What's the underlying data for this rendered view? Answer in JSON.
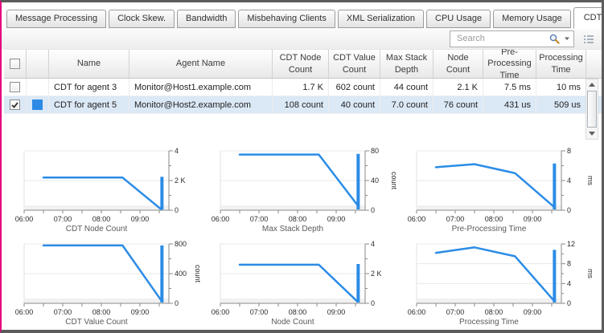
{
  "tabs": [
    {
      "label": "Message Processing",
      "active": false
    },
    {
      "label": "Clock Skew.",
      "active": false
    },
    {
      "label": "Bandwidth",
      "active": false
    },
    {
      "label": "Misbehaving Clients",
      "active": false
    },
    {
      "label": "XML Serialization",
      "active": false
    },
    {
      "label": "CPU Usage",
      "active": false
    },
    {
      "label": "Memory Usage",
      "active": false
    },
    {
      "label": "CDT Submission",
      "active": true
    }
  ],
  "toolbar": {
    "search_placeholder": "Search",
    "icons": [
      "search-icon",
      "search-options-caret-icon",
      "column-chooser-icon"
    ]
  },
  "table": {
    "columns": [
      "Name",
      "Agent Name",
      "CDT Node Count",
      "CDT Value Count",
      "Max Stack Depth",
      "Node Count",
      "Pre-Processing Time",
      "Processing Time"
    ],
    "rows": [
      {
        "checked": false,
        "selected": false,
        "swatch": null,
        "cells": {
          "name": "CDT for agent 3",
          "agent_name": "Monitor@Host1.example.com",
          "cdt_node_count": "1.7 K",
          "cdt_value_count": "602 count",
          "max_stack_depth": "44 count",
          "node_count": "2.1 K",
          "pre_processing_time": "7.5 ms",
          "processing_time": "10 ms"
        }
      },
      {
        "checked": true,
        "selected": true,
        "swatch": "#2d8ae5",
        "cells": {
          "name": "CDT for agent 5",
          "agent_name": "Monitor@Host2.example.com",
          "cdt_node_count": "108 count",
          "cdt_value_count": "40 count",
          "max_stack_depth": "7.0 count",
          "node_count": "76 count",
          "pre_processing_time": "431 us",
          "processing_time": "509 us"
        }
      }
    ]
  },
  "colors": {
    "chart_line": "#2b8ce6",
    "series_swatch": "#2d8ae5",
    "selected_row_bg": "#dbe8f6",
    "frame_accent": "#e6007e"
  },
  "chart_data": [
    {
      "type": "line",
      "title": "CDT Node Count",
      "ylabel": "",
      "xlim": [
        6,
        9.75
      ],
      "ylim": [
        0,
        4000
      ],
      "x_ticks": [
        {
          "v": 6,
          "label": "06:00"
        },
        {
          "v": 7,
          "label": "07:00"
        },
        {
          "v": 8,
          "label": "08:00"
        },
        {
          "v": 9,
          "label": "09:00"
        }
      ],
      "x_minor": [
        6.5,
        7.5,
        8.5,
        9.5
      ],
      "y_ticks": [
        {
          "v": 0,
          "label": "0"
        },
        {
          "v": 1000,
          "label": ""
        },
        {
          "v": 2000,
          "label": "2 K"
        },
        {
          "v": 3000,
          "label": ""
        },
        {
          "v": 4000,
          "label": "4"
        }
      ],
      "points": [
        [
          6.5,
          2200
        ],
        [
          8.55,
          2200
        ],
        [
          9.55,
          60
        ]
      ],
      "spike": [
        9.57,
        2250
      ]
    },
    {
      "type": "line",
      "title": "Max Stack Depth",
      "ylabel": "count",
      "xlim": [
        6,
        9.75
      ],
      "ylim": [
        0,
        80
      ],
      "x_ticks": [
        {
          "v": 6,
          "label": "06:00"
        },
        {
          "v": 7,
          "label": "07:00"
        },
        {
          "v": 8,
          "label": "08:00"
        },
        {
          "v": 9,
          "label": "09:00"
        }
      ],
      "x_minor": [
        6.5,
        7.5,
        8.5,
        9.5
      ],
      "y_ticks": [
        {
          "v": 0,
          "label": "0"
        },
        {
          "v": 20,
          "label": ""
        },
        {
          "v": 40,
          "label": "40"
        },
        {
          "v": 60,
          "label": ""
        },
        {
          "v": 80,
          "label": "80"
        }
      ],
      "points": [
        [
          6.5,
          75
        ],
        [
          8.55,
          75
        ],
        [
          9.55,
          7
        ]
      ],
      "spike": [
        9.57,
        76
      ]
    },
    {
      "type": "line",
      "title": "Pre-Processing Time",
      "ylabel": "ms",
      "xlim": [
        6,
        9.75
      ],
      "ylim": [
        0,
        8
      ],
      "x_ticks": [
        {
          "v": 6,
          "label": "06:00"
        },
        {
          "v": 7,
          "label": "07:00"
        },
        {
          "v": 8,
          "label": "08:00"
        },
        {
          "v": 9,
          "label": "09:00"
        }
      ],
      "x_minor": [
        6.5,
        7.5,
        8.5,
        9.5
      ],
      "y_ticks": [
        {
          "v": 0,
          "label": "0"
        },
        {
          "v": 2,
          "label": ""
        },
        {
          "v": 4,
          "label": "4"
        },
        {
          "v": 6,
          "label": ""
        },
        {
          "v": 8,
          "label": "8"
        }
      ],
      "points": [
        [
          6.5,
          5.8
        ],
        [
          7.5,
          6.2
        ],
        [
          8.55,
          5.0
        ],
        [
          9.55,
          0.5
        ]
      ],
      "spike": [
        9.57,
        6.3
      ]
    },
    {
      "type": "line",
      "title": "CDT Value Count",
      "ylabel": "count",
      "xlim": [
        6,
        9.75
      ],
      "ylim": [
        0,
        800
      ],
      "x_ticks": [
        {
          "v": 6,
          "label": "06:00"
        },
        {
          "v": 7,
          "label": "07:00"
        },
        {
          "v": 8,
          "label": "08:00"
        },
        {
          "v": 9,
          "label": "09:00"
        }
      ],
      "x_minor": [
        6.5,
        7.5,
        8.5,
        9.5
      ],
      "y_ticks": [
        {
          "v": 0,
          "label": "0"
        },
        {
          "v": 200,
          "label": ""
        },
        {
          "v": 400,
          "label": "400"
        },
        {
          "v": 600,
          "label": ""
        },
        {
          "v": 800,
          "label": "800"
        }
      ],
      "points": [
        [
          6.5,
          780
        ],
        [
          8.55,
          780
        ],
        [
          9.55,
          40
        ]
      ],
      "spike": [
        9.57,
        780
      ]
    },
    {
      "type": "line",
      "title": "Node Count",
      "ylabel": "",
      "xlim": [
        6,
        9.75
      ],
      "ylim": [
        0,
        4000
      ],
      "x_ticks": [
        {
          "v": 6,
          "label": "06:00"
        },
        {
          "v": 7,
          "label": "07:00"
        },
        {
          "v": 8,
          "label": "08:00"
        },
        {
          "v": 9,
          "label": "09:00"
        }
      ],
      "x_minor": [
        6.5,
        7.5,
        8.5,
        9.5
      ],
      "y_ticks": [
        {
          "v": 0,
          "label": "0"
        },
        {
          "v": 1000,
          "label": ""
        },
        {
          "v": 2000,
          "label": "2 K"
        },
        {
          "v": 3000,
          "label": ""
        },
        {
          "v": 4000,
          "label": "4"
        }
      ],
      "points": [
        [
          6.5,
          2600
        ],
        [
          8.55,
          2600
        ],
        [
          9.55,
          120
        ]
      ],
      "spike": [
        9.57,
        2650
      ]
    },
    {
      "type": "line",
      "title": "Processing Time",
      "ylabel": "ms",
      "xlim": [
        6,
        9.75
      ],
      "ylim": [
        0,
        12
      ],
      "x_ticks": [
        {
          "v": 6,
          "label": "06:00"
        },
        {
          "v": 7,
          "label": "07:00"
        },
        {
          "v": 8,
          "label": "08:00"
        },
        {
          "v": 9,
          "label": "09:00"
        }
      ],
      "x_minor": [
        6.5,
        7.5,
        8.5,
        9.5
      ],
      "y_ticks": [
        {
          "v": 0,
          "label": "0"
        },
        {
          "v": 2,
          "label": ""
        },
        {
          "v": 4,
          "label": "4"
        },
        {
          "v": 6,
          "label": ""
        },
        {
          "v": 8,
          "label": "8"
        },
        {
          "v": 10,
          "label": ""
        },
        {
          "v": 12,
          "label": "12"
        }
      ],
      "points": [
        [
          6.5,
          10.2
        ],
        [
          7.5,
          11.3
        ],
        [
          8.55,
          9.5
        ],
        [
          9.55,
          0.6
        ]
      ],
      "spike": [
        9.57,
        10.8
      ]
    }
  ]
}
